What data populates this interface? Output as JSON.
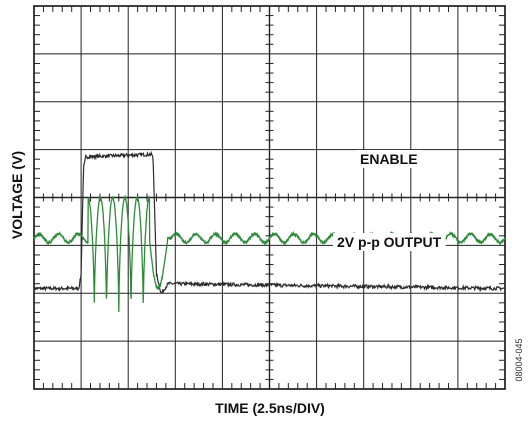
{
  "chart_data": {
    "type": "line",
    "xlabel": "TIME (2.5ns/DIV)",
    "ylabel": "VOLTAGE (V)",
    "divisions": {
      "x": 10,
      "y": 8
    },
    "grid": true,
    "figure_id": "08004-045",
    "series": [
      {
        "name": "ENABLE",
        "color": "#2b2b2b",
        "points": [
          [
            0,
            2.1
          ],
          [
            0.95,
            2.1
          ],
          [
            1.0,
            2.4
          ],
          [
            1.05,
            4.6
          ],
          [
            1.1,
            4.85
          ],
          [
            2.5,
            4.9
          ],
          [
            2.53,
            4.8
          ],
          [
            2.6,
            2.4
          ],
          [
            2.7,
            2.0
          ],
          [
            2.85,
            2.2
          ],
          [
            10,
            2.1
          ]
        ]
      },
      {
        "name": "2V p-p OUTPUT",
        "color": "#2f8a3a",
        "baseline_div": -0.85,
        "ripple_div": 0.09,
        "burst": {
          "start_div": 1.15,
          "end_div": 2.45,
          "cycles": 5,
          "high_div": 0.0,
          "low_div": -2.4
        },
        "undershoot": {
          "at_div": 2.6,
          "low_div": -2.05,
          "recover_div": 2.9
        }
      }
    ],
    "annotations": [
      {
        "text": "ENABLE",
        "attach": "ENABLE"
      },
      {
        "text": "2V p-p OUTPUT",
        "attach": "2V p-p OUTPUT"
      }
    ]
  }
}
